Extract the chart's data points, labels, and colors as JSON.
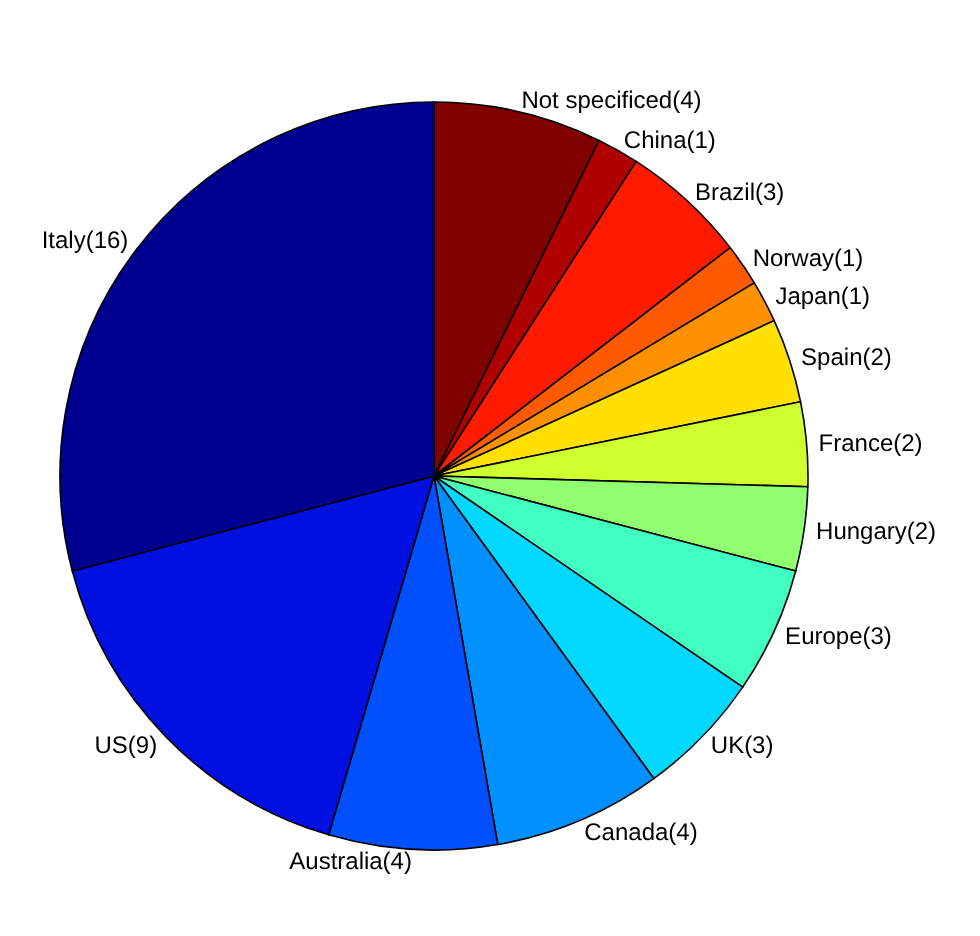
{
  "chart_data": {
    "type": "pie",
    "categories": [
      "Not specificed",
      "China",
      "Brazil",
      "Norway",
      "Japan",
      "Spain",
      "France",
      "Hungary",
      "Europe",
      "UK",
      "Canada",
      "Australia",
      "US",
      "Italy"
    ],
    "values": [
      4,
      1,
      3,
      1,
      1,
      2,
      2,
      2,
      3,
      3,
      4,
      4,
      9,
      16
    ],
    "value_labels": [
      "(4)",
      "(1)",
      "(3)",
      "(1)",
      "(1)",
      "(2)",
      "(2)",
      "(2)",
      "(3)",
      "(3)",
      "(4)",
      "(4)",
      "(9)",
      "(16)"
    ],
    "colors": [
      "#800000",
      "#b00000",
      "#ff1a00",
      "#ff5a00",
      "#ff9000",
      "#ffe000",
      "#d0ff30",
      "#90ff70",
      "#40ffc0",
      "#00d8ff",
      "#0090ff",
      "#0050ff",
      "#0010e0",
      "#000090"
    ],
    "legend": false
  }
}
